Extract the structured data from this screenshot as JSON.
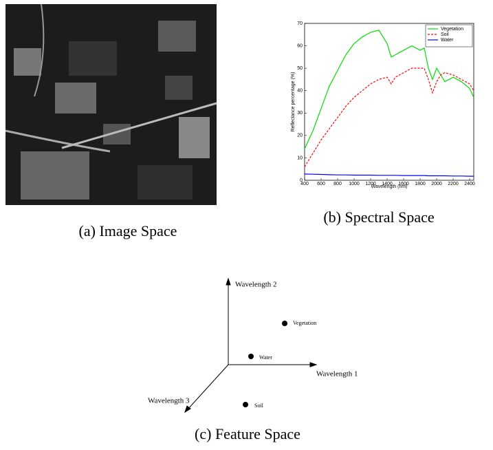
{
  "captions": [
    "(a) Image Space",
    "(b) Spectral Space",
    "(c) Feature Space"
  ],
  "feature_space": {
    "axes": [
      "Wavelength 1",
      "Wavelength 2",
      "Wavelength 3"
    ],
    "points": [
      "Vegetation",
      "Water",
      "Soil"
    ]
  },
  "chart_data": {
    "type": "line",
    "xlabel": "Wavelength (nm)",
    "ylabel": "Reflectance percentage (%)",
    "x": [
      400,
      500,
      600,
      700,
      800,
      900,
      1000,
      1100,
      1200,
      1300,
      1400,
      1450,
      1500,
      1600,
      1700,
      1800,
      1850,
      1900,
      1950,
      2000,
      2050,
      2100,
      2200,
      2300,
      2400,
      2450
    ],
    "series": [
      {
        "name": "Vegetation",
        "color": "#00dd00",
        "linestyle": "solid",
        "values": [
          14,
          22,
          32,
          42,
          49,
          56,
          61,
          64,
          66,
          67,
          61,
          55,
          56,
          58,
          60,
          58,
          59,
          50,
          45,
          50,
          47,
          44,
          46,
          44,
          41,
          37
        ]
      },
      {
        "name": "Soil",
        "color": "#ff0000",
        "linestyle": "dashed",
        "values": [
          6,
          12,
          18,
          23,
          28,
          33,
          37,
          40,
          43,
          45,
          46,
          43,
          46,
          48,
          50,
          50,
          50,
          45,
          39,
          44,
          47,
          48,
          47,
          45,
          43,
          40
        ]
      },
      {
        "name": "Water",
        "color": "#0000ff",
        "linestyle": "solid",
        "values": [
          2.8,
          2.7,
          2.6,
          2.5,
          2.4,
          2.4,
          2.3,
          2.3,
          2.3,
          2.2,
          2.2,
          2.2,
          2.2,
          2.1,
          2.1,
          2.1,
          2.1,
          2.0,
          2.0,
          2.0,
          2.0,
          2.0,
          1.9,
          1.9,
          1.8,
          1.8
        ]
      }
    ],
    "xlim": [
      400,
      2450
    ],
    "ylim": [
      0,
      70
    ],
    "xticks": [
      400,
      600,
      800,
      1000,
      1200,
      1400,
      1600,
      1800,
      2000,
      2200,
      2400
    ],
    "yticks": [
      0,
      10,
      20,
      30,
      40,
      50,
      60,
      70
    ],
    "legend": "upper right",
    "grid": false
  }
}
